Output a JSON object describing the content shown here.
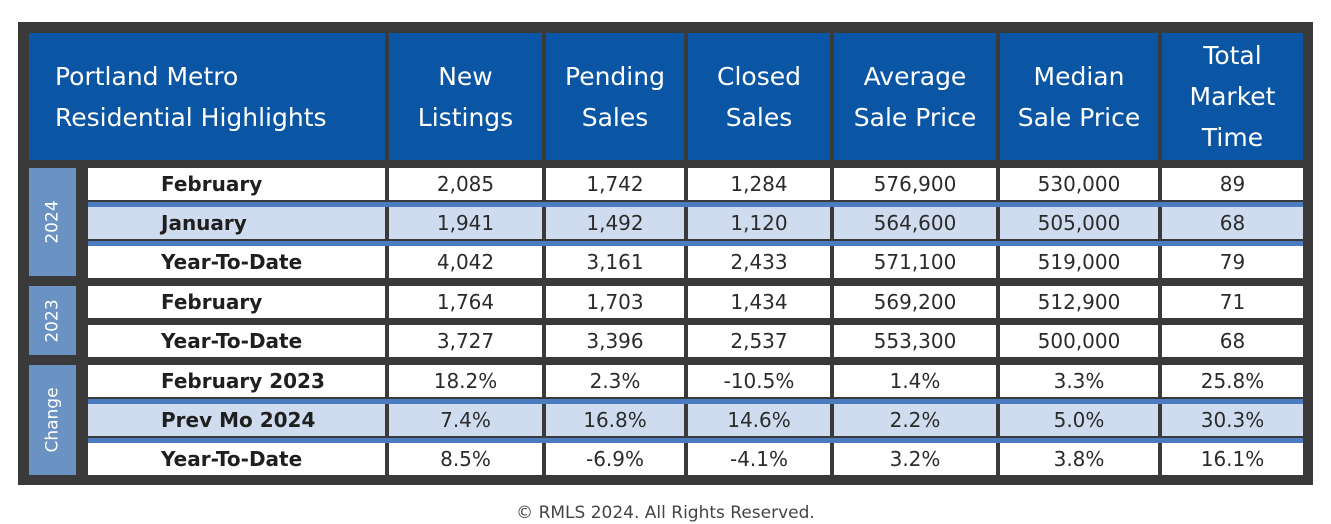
{
  "table": {
    "title_lines": [
      "Portland Metro",
      "Residential Highlights"
    ],
    "columns": [
      {
        "lines": [
          "New",
          "Listings"
        ]
      },
      {
        "lines": [
          "Pending",
          "Sales"
        ]
      },
      {
        "lines": [
          "Closed",
          "Sales"
        ]
      },
      {
        "lines": [
          "Average",
          "Sale Price"
        ]
      },
      {
        "lines": [
          "Median",
          "Sale Price"
        ]
      },
      {
        "lines": [
          "Total",
          "Market",
          "Time"
        ]
      }
    ],
    "groups": [
      {
        "label": "2024",
        "rows": [
          {
            "label": "February",
            "values": [
              "2,085",
              "1,742",
              "1,284",
              "576,900",
              "530,000",
              "89"
            ]
          },
          {
            "label": "January",
            "values": [
              "1,941",
              "1,492",
              "1,120",
              "564,600",
              "505,000",
              "68"
            ]
          },
          {
            "label": "Year-To-Date",
            "values": [
              "4,042",
              "3,161",
              "2,433",
              "571,100",
              "519,000",
              "79"
            ]
          }
        ]
      },
      {
        "label": "2023",
        "rows": [
          {
            "label": "February",
            "values": [
              "1,764",
              "1,703",
              "1,434",
              "569,200",
              "512,900",
              "71"
            ]
          },
          {
            "label": "Year-To-Date",
            "values": [
              "3,727",
              "3,396",
              "2,537",
              "553,300",
              "500,000",
              "68"
            ]
          }
        ]
      },
      {
        "label": "Change",
        "rows": [
          {
            "label": "February 2023",
            "values": [
              "18.2%",
              "2.3%",
              "-10.5%",
              "1.4%",
              "3.3%",
              "25.8%"
            ]
          },
          {
            "label": "Prev Mo 2024",
            "values": [
              "7.4%",
              "16.8%",
              "14.6%",
              "2.2%",
              "5.0%",
              "30.3%"
            ]
          },
          {
            "label": "Year-To-Date",
            "values": [
              "8.5%",
              "-6.9%",
              "-4.1%",
              "3.2%",
              "3.8%",
              "16.1%"
            ]
          }
        ]
      }
    ]
  },
  "footer": "© RMLS 2024. All Rights Reserved.",
  "colors": {
    "header_blue": "#0b55a5",
    "group_label_blue": "#6a93c4",
    "band_blue": "#4b7cbf",
    "shaded_row": "#cfdcef",
    "frame_dark": "#3a3a3a"
  }
}
